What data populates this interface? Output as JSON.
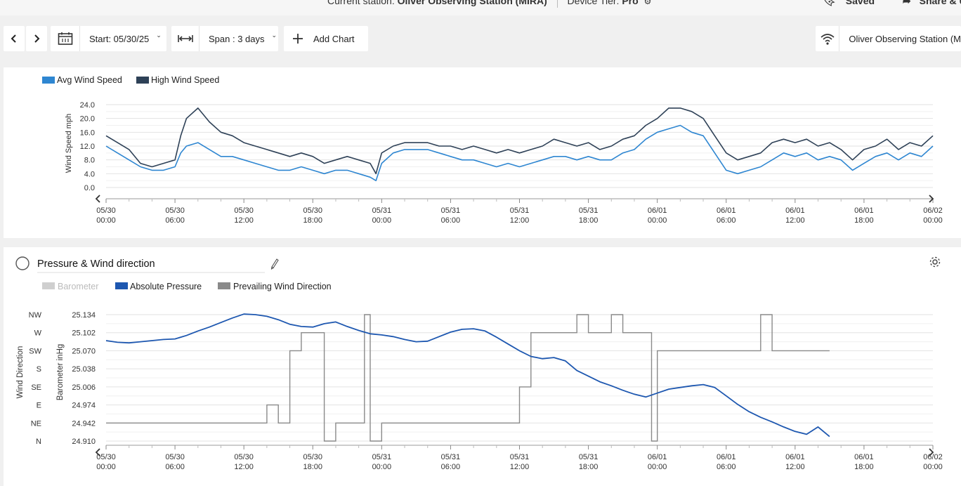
{
  "topbar": {
    "current_station_label": "Current station:",
    "current_station_name": "Oliver Observing Station (MIRA)",
    "device_tier_label": "Device Tier:",
    "device_tier_value": "Pro",
    "saved_label": "Saved",
    "share_label": "Share & U"
  },
  "toolbar": {
    "start_label": "Start: 05/30/25",
    "span_label": "Span : 3 days",
    "add_chart_label": "Add Chart",
    "station_selector_label": "Oliver Observing Station (M"
  },
  "icons": {
    "prev": "chevron-left-icon",
    "next": "chevron-right-icon",
    "calendar": "calendar-icon",
    "span": "span-arrows-icon",
    "add": "plus-icon",
    "wifi": "wifi-icon",
    "gear": "gear-icon",
    "pencil": "pencil-icon",
    "bookmark": "bookmark-icon",
    "share": "share-arrow-icon"
  },
  "colors": {
    "avg_wind": "#2e86d1",
    "high_wind": "#2e4157",
    "barometer": "#cfcfcf",
    "abs_pressure": "#1d57b0",
    "wind_dir": "#8a8a8a"
  },
  "x_ticks": [
    [
      "05/30",
      "00:00"
    ],
    [
      "05/30",
      "06:00"
    ],
    [
      "05/30",
      "12:00"
    ],
    [
      "05/30",
      "18:00"
    ],
    [
      "05/31",
      "00:00"
    ],
    [
      "05/31",
      "06:00"
    ],
    [
      "05/31",
      "12:00"
    ],
    [
      "05/31",
      "18:00"
    ],
    [
      "06/01",
      "00:00"
    ],
    [
      "06/01",
      "06:00"
    ],
    [
      "06/01",
      "12:00"
    ],
    [
      "06/01",
      "18:00"
    ],
    [
      "06/02",
      "00:00"
    ]
  ],
  "chart_data": [
    {
      "type": "line",
      "legend": [
        "Avg Wind Speed",
        "High Wind Speed"
      ],
      "ylabel": "Wind Speed mph",
      "yticks": [
        "24.0",
        "20.0",
        "16.0",
        "12.0",
        "8.0",
        "4.0",
        "0.0"
      ],
      "ylim": [
        0,
        24
      ],
      "xlim_hours": [
        0,
        72
      ],
      "series": [
        {
          "name": "High Wind Speed",
          "points": [
            [
              0,
              15
            ],
            [
              1,
              13
            ],
            [
              2,
              11
            ],
            [
              3,
              7
            ],
            [
              4,
              6
            ],
            [
              5,
              7
            ],
            [
              6,
              8
            ],
            [
              6.5,
              15
            ],
            [
              7,
              20
            ],
            [
              8,
              23
            ],
            [
              9,
              19
            ],
            [
              10,
              16
            ],
            [
              11,
              15
            ],
            [
              12,
              13
            ],
            [
              13,
              12
            ],
            [
              14,
              11
            ],
            [
              15,
              10
            ],
            [
              16,
              9
            ],
            [
              17,
              10
            ],
            [
              18,
              9
            ],
            [
              19,
              7
            ],
            [
              20,
              8
            ],
            [
              21,
              9
            ],
            [
              22,
              8
            ],
            [
              23,
              7
            ],
            [
              23.5,
              4
            ],
            [
              24,
              10
            ],
            [
              25,
              12
            ],
            [
              26,
              13
            ],
            [
              27,
              13
            ],
            [
              28,
              13
            ],
            [
              29,
              12
            ],
            [
              30,
              12
            ],
            [
              31,
              11
            ],
            [
              32,
              12
            ],
            [
              33,
              11
            ],
            [
              34,
              10
            ],
            [
              35,
              11
            ],
            [
              36,
              10
            ],
            [
              37,
              11
            ],
            [
              38,
              12
            ],
            [
              39,
              14
            ],
            [
              40,
              13
            ],
            [
              41,
              12
            ],
            [
              42,
              13
            ],
            [
              43,
              11
            ],
            [
              44,
              12
            ],
            [
              45,
              14
            ],
            [
              46,
              15
            ],
            [
              47,
              18
            ],
            [
              48,
              20
            ],
            [
              49,
              23
            ],
            [
              50,
              23
            ],
            [
              51,
              22
            ],
            [
              52,
              20
            ],
            [
              53,
              15
            ],
            [
              54,
              10
            ],
            [
              55,
              8
            ],
            [
              56,
              9
            ],
            [
              57,
              10
            ],
            [
              58,
              13
            ],
            [
              59,
              14
            ],
            [
              60,
              13
            ],
            [
              61,
              14
            ],
            [
              62,
              12
            ],
            [
              63,
              13
            ],
            [
              64,
              11
            ],
            [
              65,
              8
            ],
            [
              66,
              11
            ],
            [
              67,
              12
            ],
            [
              68,
              14
            ],
            [
              69,
              11
            ],
            [
              70,
              13
            ],
            [
              71,
              12
            ],
            [
              72,
              15
            ]
          ]
        },
        {
          "name": "Avg Wind Speed",
          "points": [
            [
              0,
              12
            ],
            [
              1,
              10
            ],
            [
              2,
              8
            ],
            [
              3,
              6
            ],
            [
              4,
              5
            ],
            [
              5,
              5
            ],
            [
              6,
              6
            ],
            [
              6.5,
              10
            ],
            [
              7,
              12
            ],
            [
              8,
              13
            ],
            [
              9,
              11
            ],
            [
              10,
              9
            ],
            [
              11,
              9
            ],
            [
              12,
              8
            ],
            [
              13,
              7
            ],
            [
              14,
              6
            ],
            [
              15,
              5
            ],
            [
              16,
              5
            ],
            [
              17,
              6
            ],
            [
              18,
              5
            ],
            [
              19,
              4
            ],
            [
              20,
              5
            ],
            [
              21,
              5
            ],
            [
              22,
              4
            ],
            [
              23,
              3
            ],
            [
              23.5,
              2
            ],
            [
              24,
              7
            ],
            [
              25,
              10
            ],
            [
              26,
              11
            ],
            [
              27,
              11
            ],
            [
              28,
              11
            ],
            [
              29,
              10
            ],
            [
              30,
              9
            ],
            [
              31,
              8
            ],
            [
              32,
              8
            ],
            [
              33,
              7
            ],
            [
              34,
              6
            ],
            [
              35,
              7
            ],
            [
              36,
              6
            ],
            [
              37,
              7
            ],
            [
              38,
              8
            ],
            [
              39,
              9
            ],
            [
              40,
              9
            ],
            [
              41,
              8
            ],
            [
              42,
              9
            ],
            [
              43,
              8
            ],
            [
              44,
              8
            ],
            [
              45,
              10
            ],
            [
              46,
              11
            ],
            [
              47,
              14
            ],
            [
              48,
              16
            ],
            [
              49,
              17
            ],
            [
              50,
              18
            ],
            [
              51,
              16
            ],
            [
              52,
              15
            ],
            [
              53,
              10
            ],
            [
              54,
              5
            ],
            [
              55,
              4
            ],
            [
              56,
              5
            ],
            [
              57,
              6
            ],
            [
              58,
              8
            ],
            [
              59,
              10
            ],
            [
              60,
              9
            ],
            [
              61,
              10
            ],
            [
              62,
              8
            ],
            [
              63,
              9
            ],
            [
              64,
              8
            ],
            [
              65,
              5
            ],
            [
              66,
              7
            ],
            [
              67,
              9
            ],
            [
              68,
              10
            ],
            [
              69,
              8
            ],
            [
              70,
              10
            ],
            [
              71,
              9
            ],
            [
              72,
              12
            ]
          ]
        }
      ]
    },
    {
      "type": "line",
      "title": "Pressure & Wind direction",
      "legend": [
        "Barometer",
        "Absolute Pressure",
        "Prevailing Wind Direction"
      ],
      "ylabel_left": "Wind Direction",
      "ylabel_right": "Barometer inHg",
      "direction_ticks": [
        "NW",
        "W",
        "SW",
        "S",
        "SE",
        "E",
        "NE",
        "N"
      ],
      "pressure_ticks": [
        "25.134",
        "25.102",
        "25.070",
        "25.038",
        "25.006",
        "24.974",
        "24.942",
        "24.910"
      ],
      "ylim": [
        24.91,
        25.134
      ],
      "xlim_hours": [
        0,
        72
      ],
      "series": [
        {
          "name": "Absolute Pressure",
          "points": [
            [
              0,
              25.088
            ],
            [
              1,
              25.085
            ],
            [
              2,
              25.084
            ],
            [
              3,
              25.086
            ],
            [
              4,
              25.088
            ],
            [
              5,
              25.09
            ],
            [
              6,
              25.091
            ],
            [
              7,
              25.097
            ],
            [
              8,
              25.105
            ],
            [
              9,
              25.112
            ],
            [
              10,
              25.12
            ],
            [
              11,
              25.128
            ],
            [
              12,
              25.135
            ],
            [
              13,
              25.134
            ],
            [
              14,
              25.131
            ],
            [
              15,
              25.125
            ],
            [
              16,
              25.117
            ],
            [
              17,
              25.113
            ],
            [
              18,
              25.112
            ],
            [
              19,
              25.118
            ],
            [
              20,
              25.121
            ],
            [
              21,
              25.113
            ],
            [
              22,
              25.106
            ],
            [
              23,
              25.1
            ],
            [
              24,
              25.098
            ],
            [
              25,
              25.095
            ],
            [
              26,
              25.09
            ],
            [
              27,
              25.086
            ],
            [
              28,
              25.087
            ],
            [
              29,
              25.095
            ],
            [
              30,
              25.103
            ],
            [
              31,
              25.108
            ],
            [
              32,
              25.109
            ],
            [
              33,
              25.105
            ],
            [
              34,
              25.094
            ],
            [
              35,
              25.082
            ],
            [
              36,
              25.07
            ],
            [
              37,
              25.06
            ],
            [
              38,
              25.056
            ],
            [
              39,
              25.058
            ],
            [
              40,
              25.052
            ],
            [
              41,
              25.035
            ],
            [
              42,
              25.025
            ],
            [
              43,
              25.015
            ],
            [
              44,
              25.008
            ],
            [
              45,
              25.0
            ],
            [
              46,
              24.993
            ],
            [
              47,
              24.988
            ],
            [
              48,
              24.995
            ],
            [
              49,
              25.002
            ],
            [
              50,
              25.005
            ],
            [
              51,
              25.008
            ],
            [
              52,
              25.01
            ],
            [
              53,
              25.005
            ],
            [
              54,
              24.99
            ],
            [
              55,
              24.975
            ],
            [
              56,
              24.962
            ],
            [
              57,
              24.952
            ],
            [
              58,
              24.944
            ],
            [
              59,
              24.935
            ],
            [
              60,
              24.927
            ],
            [
              61,
              24.922
            ],
            [
              62,
              24.935
            ],
            [
              63,
              24.918
            ]
          ]
        },
        {
          "name": "Prevailing Wind Direction",
          "points": [
            [
              0,
              "NE"
            ],
            [
              13,
              "NE"
            ],
            [
              14,
              "E"
            ],
            [
              15,
              "NE"
            ],
            [
              16,
              "SW"
            ],
            [
              17,
              "W"
            ],
            [
              18,
              "W"
            ],
            [
              19,
              "N"
            ],
            [
              20,
              "NE"
            ],
            [
              22,
              "NE"
            ],
            [
              22.5,
              "NW"
            ],
            [
              23,
              "N"
            ],
            [
              24,
              "NE"
            ],
            [
              35,
              "NE"
            ],
            [
              36,
              "SE"
            ],
            [
              37,
              "W"
            ],
            [
              40,
              "W"
            ],
            [
              41,
              "NW"
            ],
            [
              42,
              "W"
            ],
            [
              43,
              "W"
            ],
            [
              44,
              "NW"
            ],
            [
              45,
              "W"
            ],
            [
              46,
              "W"
            ],
            [
              47,
              "W"
            ],
            [
              47.5,
              "N"
            ],
            [
              48,
              "SW"
            ],
            [
              56,
              "SW"
            ],
            [
              57,
              "NW"
            ],
            [
              58,
              "SW"
            ],
            [
              63,
              "SW"
            ]
          ]
        }
      ]
    }
  ]
}
